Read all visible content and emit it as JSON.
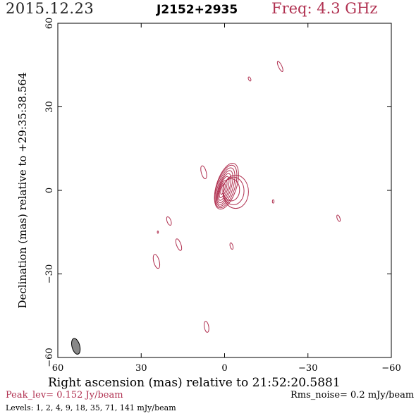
{
  "header": {
    "date": "2015.12.23",
    "source": "J2152+2935",
    "frequency": "Freq: 4.3 GHz"
  },
  "footer": {
    "peak": "Peak_lev=  0.152 Jy/beam",
    "rms": "Rms_noise=  0.2 mJy/beam",
    "levels": "Levels:   1,    2,    4,    9,   18,   35,   71, 141  mJy/beam"
  },
  "colors": {
    "contour": "#b03050",
    "beam_fill": "#888888",
    "axes": "#000000"
  },
  "chart_data": {
    "type": "contour",
    "xlabel": "Right ascension (mas) relative to 21:52:20.5881",
    "ylabel": "Declination (mas) relative to +29:35:38.564",
    "xlim": [
      60,
      -60
    ],
    "ylim": [
      -60,
      60
    ],
    "x_ticks": [
      60,
      30,
      0,
      -30,
      -60
    ],
    "y_ticks": [
      60,
      30,
      0,
      -30,
      -60
    ],
    "x_tick_labels": [
      "60",
      "30",
      "0",
      "−30",
      "−60"
    ],
    "y_tick_labels": [
      "60",
      "30",
      "0",
      "−30",
      "−60"
    ],
    "peak_jy_per_beam": 0.152,
    "rms_mjy_per_beam": 0.2,
    "contour_levels_mjy": [
      1,
      2,
      4,
      9,
      18,
      35,
      71,
      141
    ],
    "core": {
      "x": 0.5,
      "y": 0.5
    },
    "core_contours": [
      {
        "level_mjy": 1,
        "a": 3.6,
        "b": 8.6,
        "rot": 18,
        "dx": -1.2,
        "dy": 1.0
      },
      {
        "level_mjy": 2,
        "a": 3.2,
        "b": 8.0,
        "rot": 18,
        "dx": -1.0,
        "dy": 0.9
      },
      {
        "level_mjy": 4,
        "a": 2.7,
        "b": 7.2,
        "rot": 18,
        "dx": -0.8,
        "dy": 0.7
      },
      {
        "level_mjy": 9,
        "a": 2.2,
        "b": 6.4,
        "rot": 18,
        "dx": -0.6,
        "dy": 0.5
      },
      {
        "level_mjy": 18,
        "a": 1.8,
        "b": 5.5,
        "rot": 18,
        "dx": -0.4,
        "dy": 0.3
      },
      {
        "level_mjy": 35,
        "a": 1.4,
        "b": 4.5,
        "rot": 18,
        "dx": -0.2,
        "dy": 0.2
      },
      {
        "level_mjy": 71,
        "a": 1.0,
        "b": 3.3,
        "rot": 18,
        "dx": 0.0,
        "dy": 0.0
      },
      {
        "level_mjy": 141,
        "a": 0.6,
        "b": 2.0,
        "rot": 18,
        "dx": 0.1,
        "dy": 0.0
      }
    ],
    "extension_contours": [
      {
        "x": -4.0,
        "y": -0.5,
        "a": 4.6,
        "b": 6.0,
        "rot": 0
      },
      {
        "x": -3.2,
        "y": -0.2,
        "a": 3.8,
        "b": 5.0,
        "rot": 0
      },
      {
        "x": -2.4,
        "y": 0.2,
        "a": 3.0,
        "b": 4.0,
        "rot": 0
      }
    ],
    "features": [
      {
        "x": -20.0,
        "y": 44.5,
        "a": 0.6,
        "b": 2.0,
        "rot": -25
      },
      {
        "x": -9.0,
        "y": 40.0,
        "a": 0.4,
        "b": 0.8,
        "rot": -25
      },
      {
        "x": 7.5,
        "y": 6.5,
        "a": 0.9,
        "b": 2.4,
        "rot": -15
      },
      {
        "x": -17.5,
        "y": -4.0,
        "a": 0.3,
        "b": 0.6,
        "rot": 0
      },
      {
        "x": 20.0,
        "y": -11.0,
        "a": 0.7,
        "b": 1.6,
        "rot": -20
      },
      {
        "x": 24.0,
        "y": -15.0,
        "a": 0.2,
        "b": 0.4,
        "rot": 0
      },
      {
        "x": 16.5,
        "y": -19.5,
        "a": 0.8,
        "b": 2.2,
        "rot": -20
      },
      {
        "x": -2.5,
        "y": -20.0,
        "a": 0.5,
        "b": 1.2,
        "rot": -15
      },
      {
        "x": -41.0,
        "y": -10.0,
        "a": 0.5,
        "b": 1.2,
        "rot": -20
      },
      {
        "x": 24.5,
        "y": -25.5,
        "a": 1.0,
        "b": 2.6,
        "rot": -15
      },
      {
        "x": 6.5,
        "y": -49.0,
        "a": 0.8,
        "b": 2.0,
        "rot": -10
      }
    ],
    "beam": {
      "x": 53.5,
      "y": -56.0,
      "a": 1.4,
      "b": 2.9,
      "rot": -15
    }
  }
}
